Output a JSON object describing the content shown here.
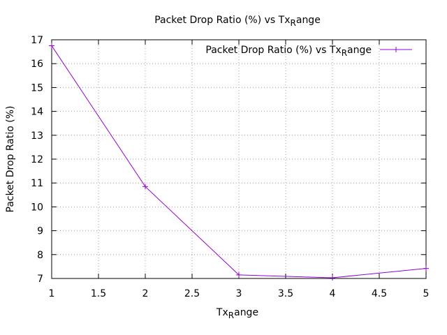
{
  "chart_data": {
    "type": "line",
    "title": {
      "main": "Packet Drop Ratio (%) vs Tx",
      "sub": "R",
      "tail": "ange"
    },
    "xlabel": {
      "main": "Tx",
      "sub": "R",
      "tail": "ange"
    },
    "ylabel": "Packet Drop Ratio (%)",
    "xlim": [
      1,
      5
    ],
    "ylim": [
      7,
      17
    ],
    "xticks": [
      1,
      1.5,
      2,
      2.5,
      3,
      3.5,
      4,
      4.5,
      5
    ],
    "xtick_labels": [
      "1",
      "1.5",
      "2",
      "2.5",
      "3",
      "3.5",
      "4",
      "4.5",
      "5"
    ],
    "yticks": [
      7,
      8,
      9,
      10,
      11,
      12,
      13,
      14,
      15,
      16,
      17
    ],
    "ytick_labels": [
      "7",
      "8",
      "9",
      "10",
      "11",
      "12",
      "13",
      "14",
      "15",
      "16",
      "17"
    ],
    "grid": true,
    "legend_position": "top-right",
    "series": [
      {
        "name": {
          "main": "Packet Drop Ratio (%) vs Tx",
          "sub": "R",
          "tail": "ange"
        },
        "color": "#9400d3",
        "marker": "plus",
        "x": [
          1,
          2,
          3,
          4,
          5
        ],
        "y": [
          16.75,
          10.85,
          7.15,
          7.03,
          7.42
        ]
      }
    ]
  }
}
